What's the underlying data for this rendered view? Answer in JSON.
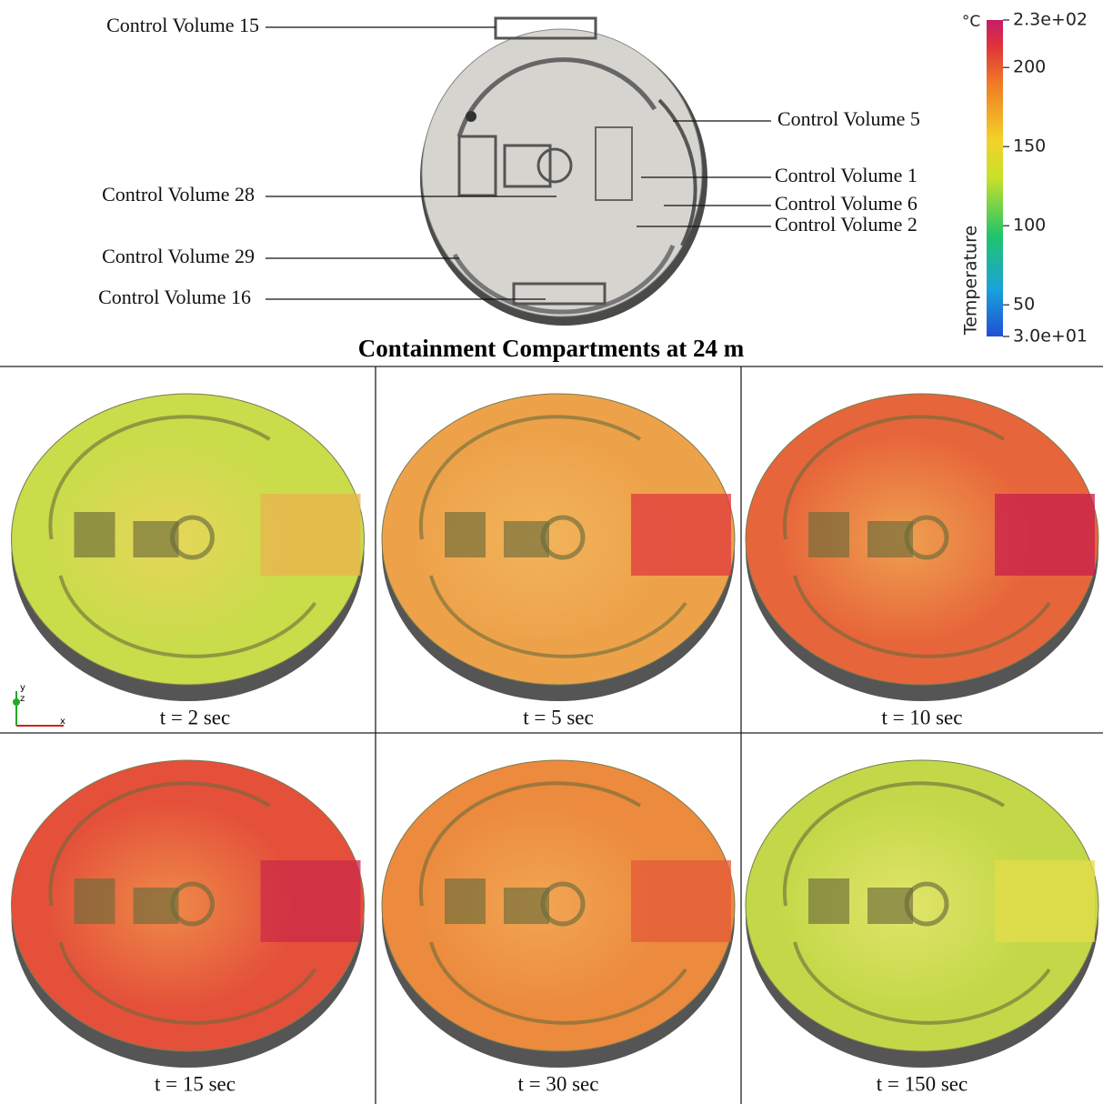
{
  "diagram": {
    "labels_left": [
      "Control Volume 15",
      "Control Volume 28",
      "Control Volume 29",
      "Control Volume 16"
    ],
    "labels_right": [
      "Control Volume 5",
      "Control Volume 1",
      "Control Volume 6",
      "Control Volume 2"
    ]
  },
  "title": "Containment Compartments at 24 m",
  "colorbar": {
    "unit": "°C",
    "label": "Temperature",
    "ticks": [
      {
        "value": 230,
        "label": "2.3e+02"
      },
      200,
      150,
      100,
      50,
      {
        "value": 30,
        "label": "3.0e+01"
      }
    ]
  },
  "axes_triad": [
    "y",
    "z",
    "x"
  ],
  "panels": [
    {
      "label": "t = 2 sec"
    },
    {
      "label": "t = 5 sec"
    },
    {
      "label": "t = 10 sec"
    },
    {
      "label": "t = 15 sec"
    },
    {
      "label": "t = 30 sec"
    },
    {
      "label": "t = 150 sec"
    }
  ]
}
